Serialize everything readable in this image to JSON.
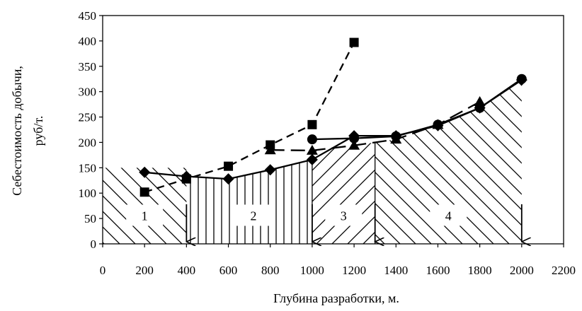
{
  "chart_data": {
    "type": "line",
    "title": "",
    "xlabel": "Глубина разработки, м.",
    "ylabel_line1": "Себестоимость добычи,",
    "ylabel_line2": "руб/т.",
    "xlim": [
      0,
      2200
    ],
    "ylim": [
      0,
      450
    ],
    "x_ticks": [
      0,
      200,
      400,
      600,
      800,
      1000,
      1200,
      1400,
      1600,
      1800,
      2000,
      2200
    ],
    "y_ticks": [
      0,
      50,
      100,
      150,
      200,
      250,
      300,
      350,
      400,
      450
    ],
    "grid": false,
    "series": [
      {
        "marker": "diamond",
        "dash": "solid",
        "x": [
          200,
          400,
          600,
          800,
          1000,
          1200,
          1400,
          1600,
          1800,
          2000
        ],
        "y": [
          141,
          133,
          128,
          146,
          166,
          213,
          213,
          233,
          268,
          323
        ]
      },
      {
        "marker": "square",
        "dash": "dashed",
        "x": [
          200,
          400,
          600,
          800,
          1000,
          1200
        ],
        "y": [
          102,
          128,
          153,
          195,
          235,
          397
        ]
      },
      {
        "marker": "triangle",
        "dash": "longdash",
        "x": [
          800,
          1000,
          1200,
          1400,
          1600,
          1800
        ],
        "y": [
          185,
          184,
          194,
          206,
          235,
          280
        ]
      },
      {
        "marker": "circle",
        "dash": "solid",
        "x": [
          1000,
          1200,
          1400,
          1600,
          1800,
          2000
        ],
        "y": [
          206,
          208,
          212,
          235,
          268,
          325
        ]
      }
    ],
    "zones": [
      {
        "label": "1",
        "pattern": "diag-back",
        "x0": 0,
        "x1": 400,
        "label_x": 200,
        "label_y": 55,
        "boundary": [
          [
            0,
            150
          ],
          [
            400,
            150
          ]
        ]
      },
      {
        "label": "2",
        "pattern": "vertical",
        "x0": 400,
        "x1": 1000,
        "label_x": 720,
        "label_y": 55,
        "boundary": [
          [
            400,
            133
          ],
          [
            600,
            128
          ],
          [
            800,
            146
          ],
          [
            1000,
            166
          ]
        ]
      },
      {
        "label": "3",
        "pattern": "diag-fwd",
        "x0": 1000,
        "x1": 1300,
        "label_x": 1150,
        "label_y": 55,
        "boundary": [
          [
            1000,
            184
          ],
          [
            1200,
            194
          ],
          [
            1300,
            200
          ]
        ]
      },
      {
        "label": "4",
        "pattern": "diag-back",
        "x0": 1300,
        "x1": 2000,
        "label_x": 1650,
        "label_y": 55,
        "boundary": [
          [
            1300,
            200
          ],
          [
            1400,
            206
          ],
          [
            1600,
            235
          ],
          [
            1800,
            268
          ],
          [
            2000,
            325
          ]
        ]
      }
    ],
    "arrows_x": [
      400,
      1000,
      1300,
      2000
    ]
  },
  "colors": {
    "ink": "#000000",
    "background": "#ffffff"
  }
}
